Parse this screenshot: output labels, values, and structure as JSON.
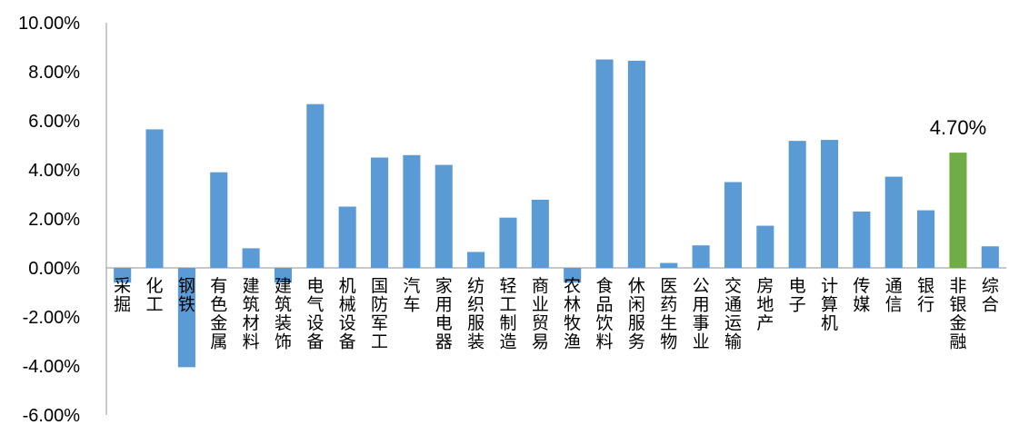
{
  "chart_data": {
    "type": "bar",
    "categories": [
      "采掘",
      "化工",
      "钢铁",
      "有色金属",
      "建筑材料",
      "建筑装饰",
      "电气设备",
      "机械设备",
      "国防军工",
      "汽车",
      "家用电器",
      "纺织服装",
      "轻工制造",
      "商业贸易",
      "农林牧渔",
      "食品饮料",
      "休闲服务",
      "医药生物",
      "公用事业",
      "交通运输",
      "房地产",
      "电子",
      "计算机",
      "传媒",
      "通信",
      "银行",
      "非银金融",
      "综合"
    ],
    "values": [
      -0.6,
      5.65,
      -4.05,
      3.9,
      0.8,
      -0.6,
      6.68,
      2.5,
      4.5,
      4.6,
      4.2,
      0.65,
      2.05,
      2.78,
      -0.6,
      8.5,
      8.45,
      0.2,
      0.92,
      3.5,
      1.72,
      5.18,
      5.22,
      2.3,
      3.72,
      2.35,
      4.7,
      0.88
    ],
    "yticks": [
      "10.00%",
      "8.00%",
      "6.00%",
      "4.00%",
      "2.00%",
      "0.00%",
      "-2.00%",
      "-4.00%",
      "-6.00%"
    ],
    "ylim": [
      -6,
      10
    ],
    "grid": false,
    "legend": "none",
    "highlight_index": 26,
    "highlight_label": "4.70%",
    "colors": {
      "bar": "#5b9bd5",
      "highlight": "#70ad47",
      "axis": "#a6a6a6"
    }
  }
}
